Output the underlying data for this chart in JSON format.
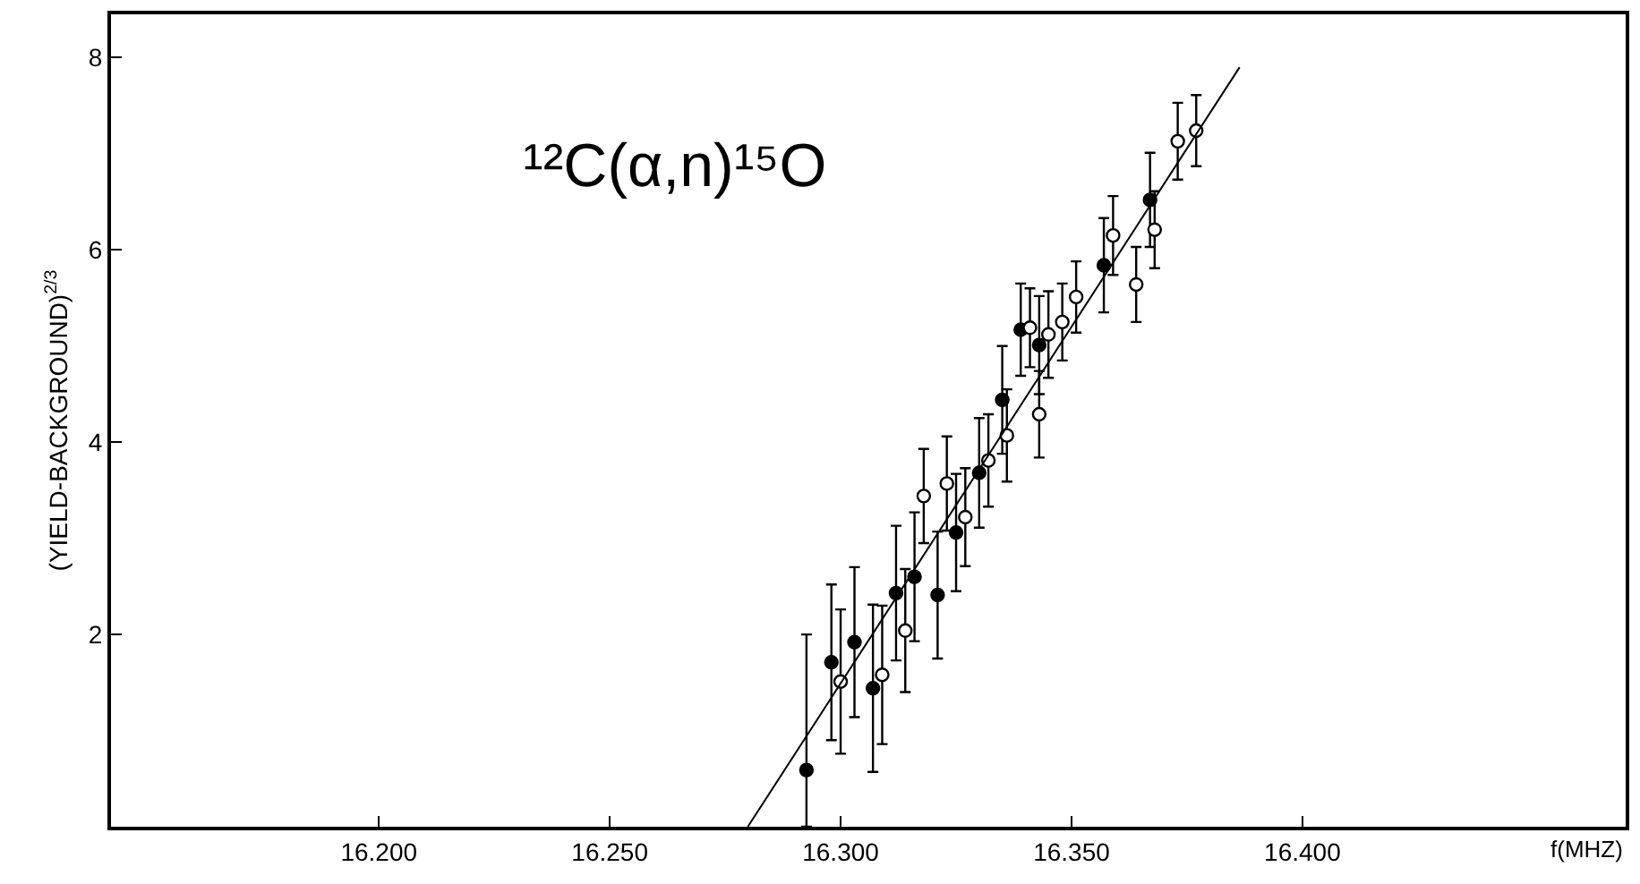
{
  "chart_data": {
    "type": "scatter",
    "xlabel": "f(MHZ)",
    "ylabel": "(YIELD-BACKGROUND)$^{2/3}$",
    "annotations": [
      "¹²C(α,n)¹⁵O"
    ],
    "xlim": [
      16.142,
      16.47
    ],
    "ylim": [
      0,
      8.45
    ],
    "xticks": [
      {
        "value": 16.2,
        "label": "16.200"
      },
      {
        "value": 16.25,
        "label": "16.250"
      },
      {
        "value": 16.3,
        "label": "16.300"
      },
      {
        "value": 16.35,
        "label": "16.350"
      },
      {
        "value": 16.4,
        "label": "16.400"
      }
    ],
    "yticks": [
      2,
      4,
      6,
      8
    ],
    "marker": "circle",
    "series": [
      {
        "color": "#000000",
        "x": [
          16.2926,
          16.298,
          16.303,
          16.307,
          16.312,
          16.316,
          16.321,
          16.325,
          16.33,
          16.335,
          16.339,
          16.343,
          16.357,
          16.367
        ],
        "values": [
          0.59,
          1.71,
          1.92,
          1.44,
          2.43,
          2.6,
          2.41,
          3.06,
          3.68,
          4.44,
          5.17,
          5.01,
          5.84,
          6.52
        ],
        "errors": [
          [
            0,
            2.0
          ],
          0.81,
          0.78,
          0.87,
          0.7,
          0.67,
          0.66,
          0.61,
          0.57,
          0.56,
          0.48,
          0.51,
          0.49,
          0.49
        ]
      },
      {
        "color": "#ffffff",
        "x": [
          16.3,
          16.309,
          16.314,
          16.318,
          16.323,
          16.327,
          16.332,
          16.336,
          16.341,
          16.343,
          16.345,
          16.348,
          16.351,
          16.359,
          16.364,
          16.368,
          16.373,
          16.377
        ],
        "values": [
          1.51,
          1.58,
          2.04,
          3.44,
          3.57,
          3.22,
          3.81,
          4.07,
          5.19,
          4.29,
          5.12,
          5.25,
          5.51,
          6.15,
          5.64,
          6.21,
          7.13,
          7.24
        ],
        "errors": [
          0.75,
          0.72,
          0.64,
          0.49,
          0.49,
          0.51,
          0.48,
          0.48,
          0.41,
          0.45,
          0.45,
          0.4,
          0.37,
          0.41,
          0.39,
          0.4,
          0.4,
          0.37
        ]
      },
      {
        "type": "line",
        "color": "#000000",
        "marker": "none",
        "x": [
          16.2799,
          16.3864
        ],
        "values": [
          0,
          7.9
        ]
      }
    ]
  }
}
